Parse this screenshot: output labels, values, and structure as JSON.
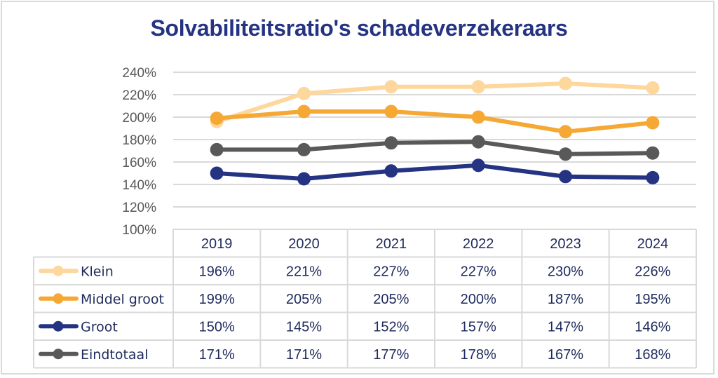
{
  "chart_data": {
    "type": "line",
    "title": "Solvabiliteitsratio's schadeverzekeraars",
    "xlabel": "",
    "ylabel": "",
    "ylim": [
      100,
      240
    ],
    "yticks": [
      "100%",
      "120%",
      "140%",
      "160%",
      "180%",
      "200%",
      "220%",
      "240%"
    ],
    "ytick_values": [
      100,
      120,
      140,
      160,
      180,
      200,
      220,
      240
    ],
    "grid": true,
    "legend": "data-table-left",
    "categories": [
      "2019",
      "2020",
      "2021",
      "2022",
      "2023",
      "2024"
    ],
    "series": [
      {
        "name": "Klein",
        "color": "#fdd79c",
        "values": [
          196,
          221,
          227,
          227,
          230,
          226
        ],
        "labels": [
          "196%",
          "221%",
          "227%",
          "227%",
          "230%",
          "226%"
        ]
      },
      {
        "name": "Middel groot",
        "color": "#f5a833",
        "values": [
          199,
          205,
          205,
          200,
          187,
          195
        ],
        "labels": [
          "199%",
          "205%",
          "205%",
          "200%",
          "187%",
          "195%"
        ]
      },
      {
        "name": "Groot",
        "color": "#253383",
        "values": [
          150,
          145,
          152,
          157,
          147,
          146
        ],
        "labels": [
          "150%",
          "145%",
          "152%",
          "157%",
          "147%",
          "146%"
        ]
      },
      {
        "name": "Eindtotaal",
        "color": "#595959",
        "values": [
          171,
          171,
          177,
          178,
          167,
          168
        ],
        "labels": [
          "171%",
          "171%",
          "177%",
          "178%",
          "167%",
          "168%"
        ]
      }
    ]
  },
  "colors": {
    "title": "#253383",
    "grid": "#d9d9d9",
    "table_text": "#1f2a5c",
    "axis_text": "#595959"
  }
}
